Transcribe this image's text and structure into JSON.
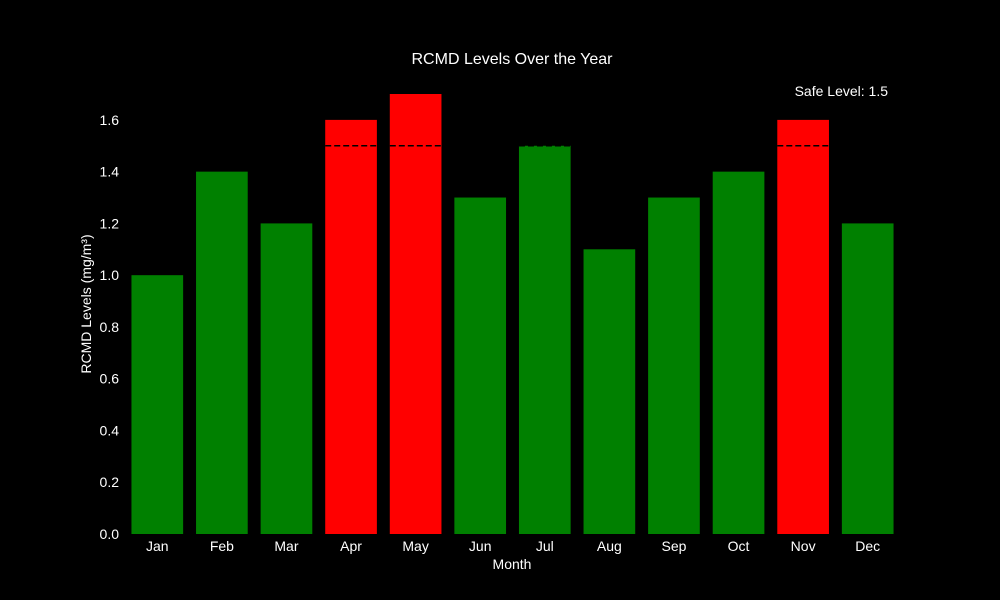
{
  "chart_data": {
    "type": "bar",
    "title": "RCMD Levels Over the Year",
    "xlabel": "Month",
    "ylabel": "RCMD Levels (mg/m³)",
    "categories": [
      "Jan",
      "Feb",
      "Mar",
      "Apr",
      "May",
      "Jun",
      "Jul",
      "Aug",
      "Sep",
      "Oct",
      "Nov",
      "Dec"
    ],
    "values": [
      1.0,
      1.4,
      1.2,
      1.6,
      1.7,
      1.3,
      1.5,
      1.1,
      1.3,
      1.4,
      1.6,
      1.2
    ],
    "ylim": [
      0,
      1.7
    ],
    "yticks": [
      0.0,
      0.2,
      0.4,
      0.6,
      0.8,
      1.0,
      1.2,
      1.4,
      1.6
    ],
    "safe_level": 1.5,
    "safe_level_label": "Safe Level: 1.5",
    "grid": false,
    "colors": {
      "safe": "#008000",
      "exceeds": "#ff0000",
      "threshold_line": "#000000",
      "background": "#000000",
      "text": "#ffffff"
    }
  }
}
